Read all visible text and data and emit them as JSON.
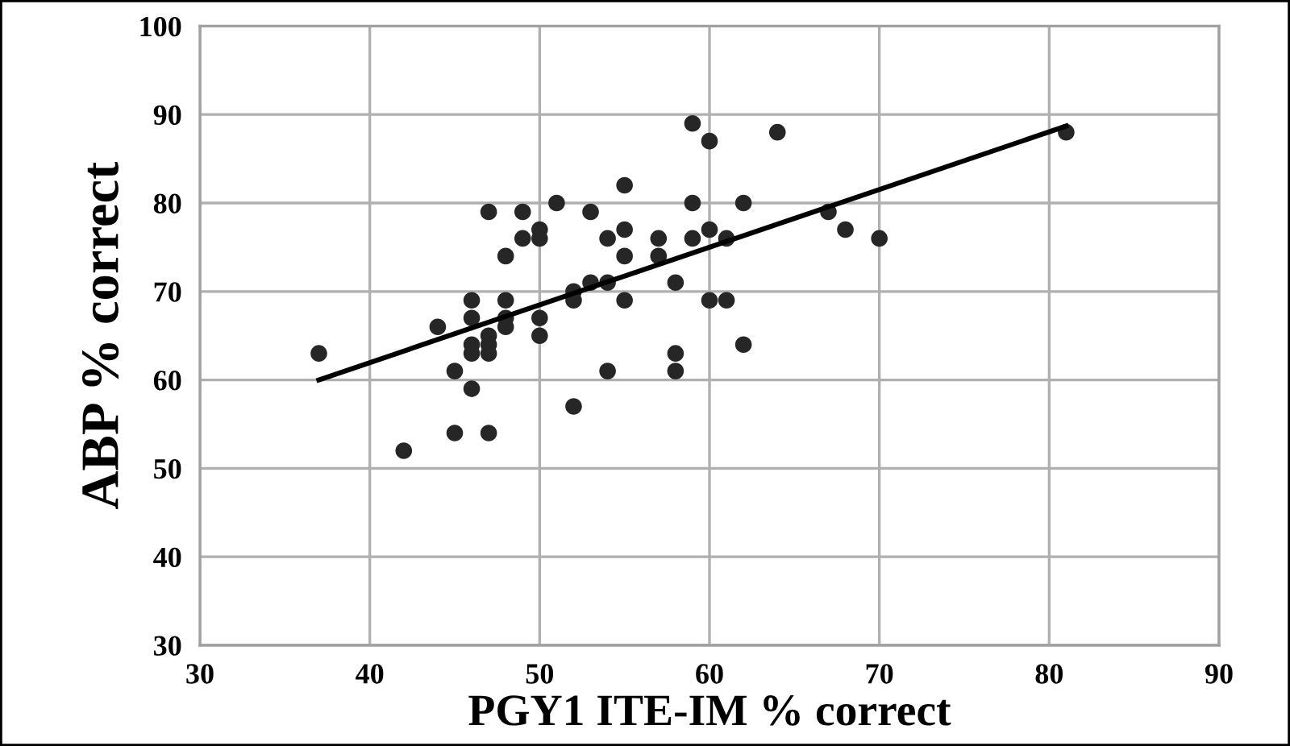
{
  "chart_data": {
    "type": "scatter",
    "xlabel": "PGY1 ITE-IM % correct",
    "ylabel": "ABP % correct",
    "xlim": [
      30,
      90
    ],
    "xticks": [
      30,
      40,
      50,
      60,
      70,
      80,
      90
    ],
    "ylim": [
      30,
      100
    ],
    "yticks": [
      30,
      40,
      50,
      60,
      70,
      80,
      90,
      100
    ],
    "grid": true,
    "legend": false,
    "series": [
      {
        "color": "#262626",
        "marker": "circle",
        "x": [
          37,
          42,
          44,
          45,
          45,
          46,
          46,
          46,
          46,
          46,
          47,
          47,
          47,
          47,
          47,
          48,
          48,
          48,
          48,
          49,
          49,
          50,
          50,
          50,
          50,
          51,
          52,
          52,
          52,
          53,
          53,
          54,
          54,
          54,
          55,
          55,
          55,
          55,
          57,
          57,
          58,
          58,
          58,
          59,
          59,
          59,
          60,
          60,
          60,
          61,
          61,
          62,
          62,
          64,
          67,
          68,
          70,
          81
        ],
        "values": [
          63,
          52,
          66,
          61,
          54,
          69,
          67,
          64,
          63,
          59,
          79,
          65,
          64,
          63,
          54,
          74,
          69,
          67,
          66,
          79,
          76,
          77,
          76,
          67,
          65,
          80,
          70,
          69,
          57,
          79,
          71,
          76,
          71,
          61,
          82,
          77,
          74,
          69,
          76,
          74,
          71,
          63,
          61,
          89,
          80,
          76,
          87,
          77,
          69,
          76,
          69,
          80,
          64,
          88,
          79,
          77,
          76,
          88
        ]
      },
      {
        "type": "line",
        "color": "#000000",
        "marker": "none",
        "line_style": "solid",
        "x": [
          37,
          81
        ],
        "values": [
          60,
          88.7
        ]
      }
    ]
  }
}
